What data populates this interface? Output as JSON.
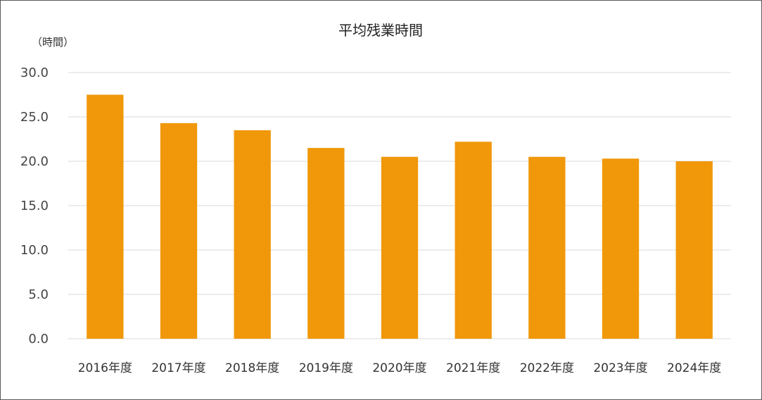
{
  "chart_data": {
    "type": "bar",
    "title": "平均残業時間",
    "ylabel": "（時間）",
    "xlabel": "",
    "categories": [
      "2016年度",
      "2017年度",
      "2018年度",
      "2019年度",
      "2020年度",
      "2021年度",
      "2022年度",
      "2023年度",
      "2024年度"
    ],
    "values": [
      27.5,
      24.3,
      23.5,
      21.5,
      20.5,
      22.2,
      20.5,
      20.3,
      20.0
    ],
    "ylim": [
      0,
      30
    ],
    "yticks": [
      "0.0",
      "5.0",
      "10.0",
      "15.0",
      "20.0",
      "25.0",
      "30.0"
    ],
    "grid": true,
    "legend": "none",
    "bar_color": "#f0980a"
  }
}
